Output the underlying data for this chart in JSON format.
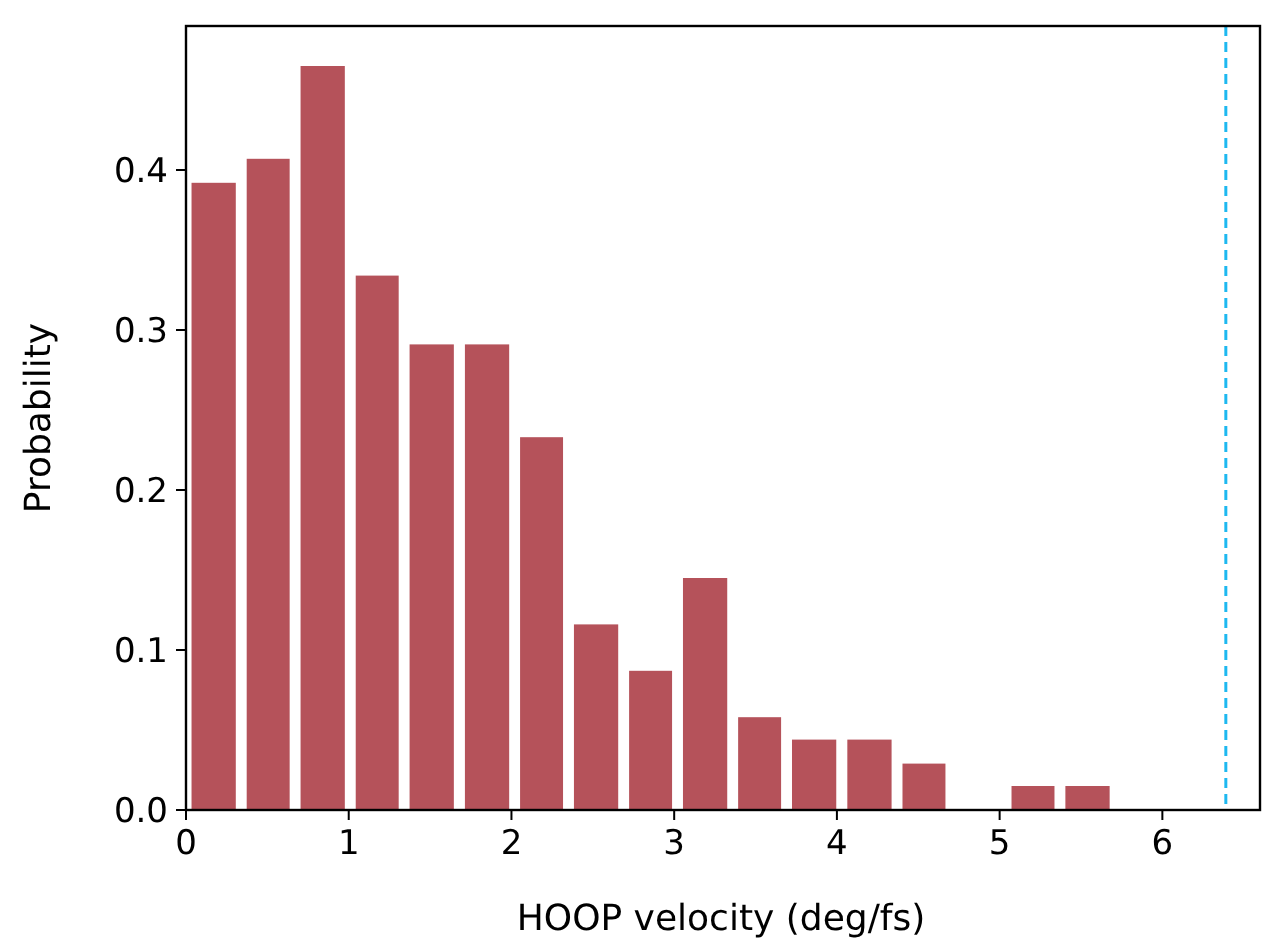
{
  "chart_data": {
    "type": "histogram",
    "xlabel": "HOOP velocity (deg/fs)",
    "ylabel": "Probability",
    "bins": [
      0,
      0.34,
      0.67,
      1.01,
      1.34,
      1.68,
      2.02,
      2.35,
      2.69,
      3.02,
      3.36,
      3.69,
      4.03,
      4.37,
      4.7,
      5.04,
      5.37,
      5.71
    ],
    "values": [
      0.392,
      0.407,
      0.465,
      0.334,
      0.291,
      0.291,
      0.233,
      0.116,
      0.087,
      0.145,
      0.058,
      0.044,
      0.044,
      0.029,
      0,
      0.015,
      0.015
    ],
    "color": "#b5525a",
    "xlim": [
      0,
      6.6
    ],
    "xticks": [
      0,
      1,
      2,
      3,
      4,
      5,
      6
    ],
    "ylim": [
      0,
      0.49
    ],
    "yticks": [
      {
        "value": 0,
        "label": "0.0"
      },
      {
        "value": 0.1,
        "label": "0.1"
      },
      {
        "value": 0.2,
        "label": "0.2"
      },
      {
        "value": 0.3,
        "label": "0.3"
      },
      {
        "value": 0.4,
        "label": "0.4"
      }
    ],
    "ref_lines": [
      {
        "axis": "x",
        "value": 6.39,
        "color": "#1eb8f0",
        "line_style": "dashed"
      }
    ]
  }
}
